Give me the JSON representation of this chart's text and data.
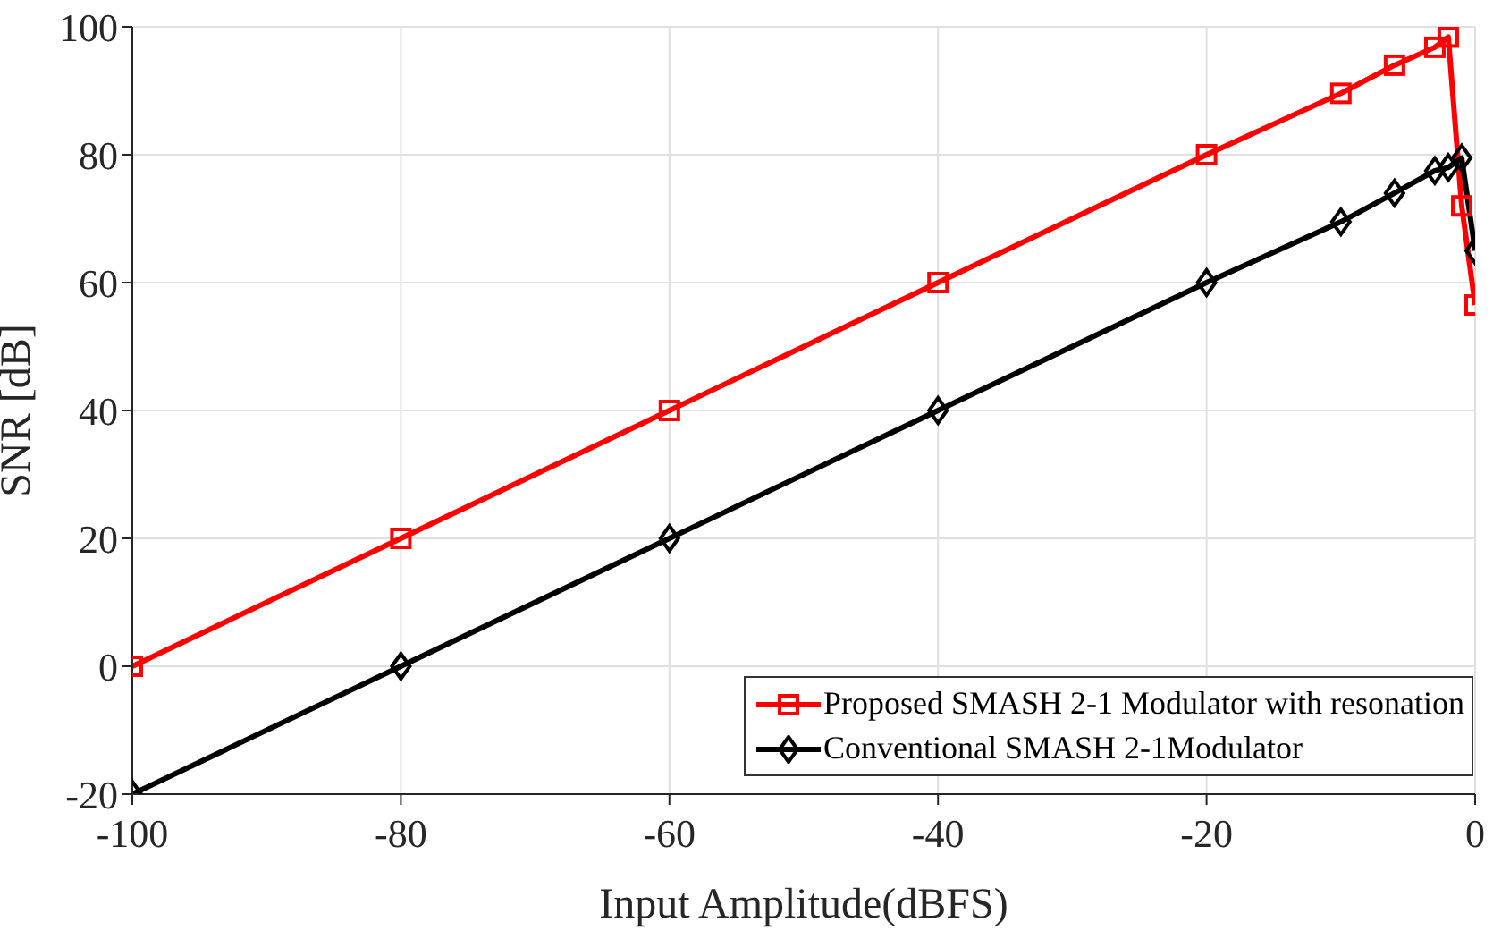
{
  "chart_data": {
    "type": "line",
    "xlabel": "Input Amplitude(dBFS)",
    "ylabel": "SNR [dB]",
    "x": [
      -100,
      -80,
      -60,
      -40,
      -20,
      -10,
      -6,
      -3,
      -2,
      -1,
      0
    ],
    "series": [
      {
        "name": "Proposed SMASH 2-1 Modulator with resonation",
        "color": "#ff0000",
        "marker": "square",
        "values": [
          0,
          20,
          40,
          60,
          80,
          89.6,
          94,
          96.8,
          98.4,
          72,
          56.5
        ]
      },
      {
        "name": "Conventional SMASH 2-1Modulator",
        "color": "#000000",
        "marker": "diamond",
        "values": [
          -20,
          0,
          20,
          40,
          60,
          69.5,
          74,
          77.5,
          78,
          79.5,
          65
        ]
      }
    ],
    "xlim": [
      -100,
      0
    ],
    "xticks": [
      -100,
      -80,
      -60,
      -40,
      -20,
      0
    ],
    "ylim": [
      -20,
      100
    ],
    "yticks": [
      -20,
      0,
      20,
      40,
      60,
      80,
      100
    ],
    "grid": true,
    "legend": "bottom right",
    "line_style": "solid"
  }
}
